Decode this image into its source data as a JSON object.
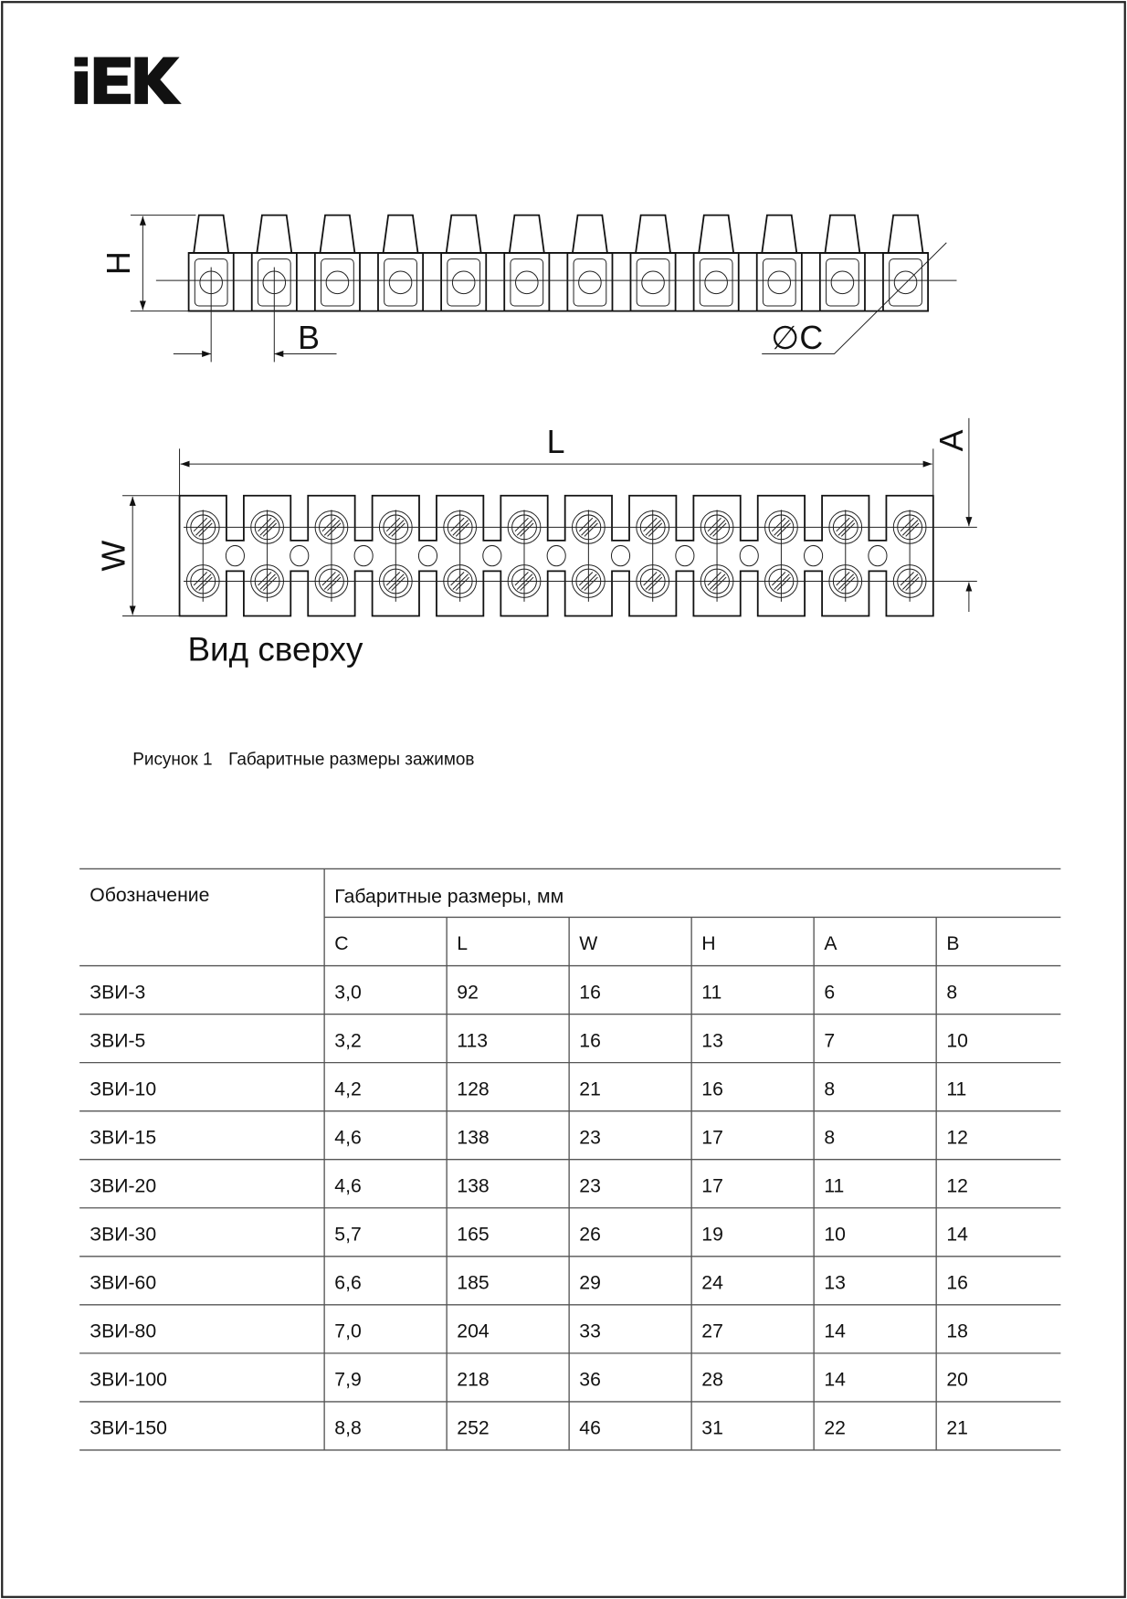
{
  "logo": {
    "text": "IEK",
    "color": "#111111"
  },
  "figure": {
    "side_view": {
      "label_h": "H",
      "label_b": "B",
      "label_c": "∅C"
    },
    "top_view": {
      "label_l": "L",
      "label_w": "W",
      "label_a": "A",
      "title": "Вид сверху"
    },
    "caption_number": "Рисунок 1",
    "caption_text": "Габаритные размеры зажимов"
  },
  "table": {
    "header_designation": "Обозначение",
    "header_dimensions": "Габаритные размеры, мм",
    "columns": [
      "C",
      "L",
      "W",
      "H",
      "A",
      "B"
    ],
    "rows": [
      [
        "ЗВИ-3",
        "3,0",
        "92",
        "16",
        "11",
        "6",
        "8"
      ],
      [
        "ЗВИ-5",
        "3,2",
        "113",
        "16",
        "13",
        "7",
        "10"
      ],
      [
        "ЗВИ-10",
        "4,2",
        "128",
        "21",
        "16",
        "8",
        "11"
      ],
      [
        "ЗВИ-15",
        "4,6",
        "138",
        "23",
        "17",
        "8",
        "12"
      ],
      [
        "ЗВИ-20",
        "4,6",
        "138",
        "23",
        "17",
        "11",
        "12"
      ],
      [
        "ЗВИ-30",
        "5,7",
        "165",
        "26",
        "19",
        "10",
        "14"
      ],
      [
        "ЗВИ-60",
        "6,6",
        "185",
        "29",
        "24",
        "13",
        "16"
      ],
      [
        "ЗВИ-80",
        "7,0",
        "204",
        "33",
        "27",
        "14",
        "18"
      ],
      [
        "ЗВИ-100",
        "7,9",
        "218",
        "36",
        "28",
        "14",
        "20"
      ],
      [
        "ЗВИ-150",
        "8,8",
        "252",
        "46",
        "31",
        "22",
        "21"
      ]
    ]
  }
}
